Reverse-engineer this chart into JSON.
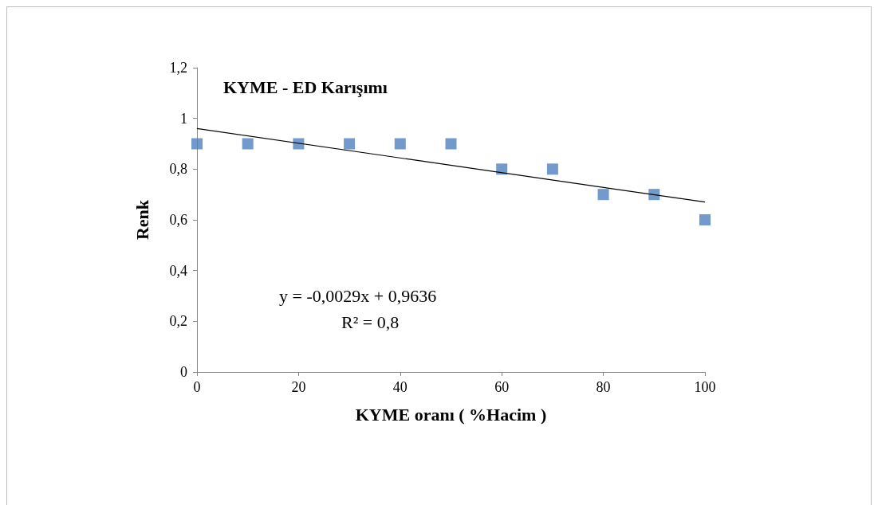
{
  "chart_data": {
    "type": "scatter",
    "title": "KYME - ED Karışımı",
    "xlabel": "KYME oranı ( %Hacim )",
    "ylabel": "Renk",
    "x": [
      0,
      10,
      20,
      30,
      40,
      50,
      60,
      70,
      80,
      90,
      100
    ],
    "series": [
      {
        "color": "#4f81bd",
        "marker": "square",
        "values": [
          0.9,
          0.9,
          0.9,
          0.9,
          0.9,
          0.9,
          0.8,
          0.8,
          0.7,
          0.7,
          0.6
        ]
      },
      {
        "type": "line",
        "color": "#000000",
        "marker": "none",
        "x": [
          0,
          100
        ],
        "values": [
          0.96,
          0.67
        ]
      }
    ],
    "xlim": [
      0,
      100
    ],
    "xticks": [
      0,
      20,
      40,
      60,
      80,
      100
    ],
    "ylim": [
      0,
      1.2
    ],
    "yticks": [
      0,
      {
        "value": 0.2,
        "label": "0,2"
      },
      {
        "value": 0.4,
        "label": "0,4"
      },
      {
        "value": 0.6,
        "label": "0,6"
      },
      {
        "value": 0.8,
        "label": "0,8"
      },
      1,
      {
        "value": 1.2,
        "label": "1,2"
      }
    ],
    "annotations": [
      "y = -0,0029x + 0,9636",
      "R² = 0,8"
    ],
    "grid": false,
    "line_style": "solid"
  }
}
